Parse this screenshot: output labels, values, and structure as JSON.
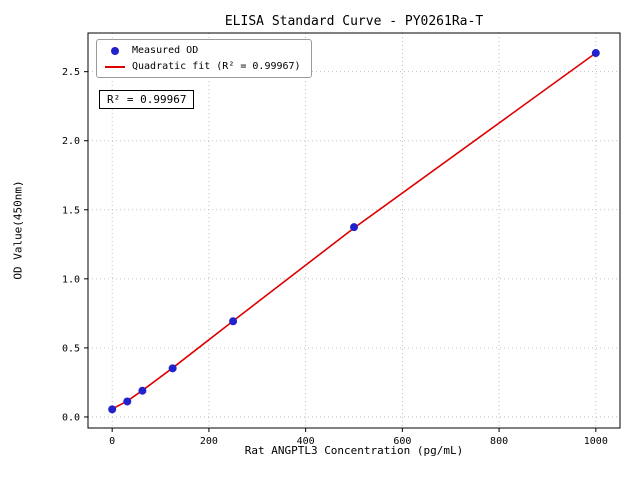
{
  "chart_data": {
    "type": "scatter",
    "title": "ELISA Standard Curve - PY0261Ra-T",
    "xlabel": "Rat ANGPTL3 Concentration (pg/mL)",
    "ylabel": "OD Value(450nm)",
    "xlim": [
      -50,
      1050
    ],
    "ylim": [
      -0.08,
      2.78
    ],
    "x_ticks": {
      "values": [
        0,
        200,
        400,
        600,
        800,
        1000
      ],
      "labels": [
        "0",
        "200",
        "400",
        "600",
        "800",
        "1000"
      ]
    },
    "y_ticks": {
      "values": [
        0.0,
        0.5,
        1.0,
        1.5,
        2.0,
        2.5
      ],
      "labels": [
        "0.0",
        "0.5",
        "1.0",
        "1.5",
        "2.0",
        "2.5"
      ]
    },
    "grid": true,
    "legend_position": "upper-left",
    "annotation": "R² = 0.99967",
    "colors": {
      "points": "#2222cc",
      "fit_line": "#dd0000",
      "grid": "#b0b0b0",
      "axis": "#000000"
    },
    "series": [
      {
        "name": "Measured OD",
        "type": "scatter",
        "color": "#2222cc",
        "x": [
          0,
          31.25,
          62.5,
          125,
          250,
          500,
          1000
        ],
        "y": [
          0.055,
          0.112,
          0.19,
          0.352,
          0.693,
          1.374,
          2.635
        ]
      },
      {
        "name": "Quadratic fit (R² = 0.99967)",
        "type": "line",
        "color": "#dd0000",
        "x": [
          0,
          31.25,
          62.5,
          125,
          250,
          500,
          1000
        ],
        "y": [
          0.058,
          0.115,
          0.192,
          0.355,
          0.695,
          1.368,
          2.635
        ]
      }
    ]
  }
}
